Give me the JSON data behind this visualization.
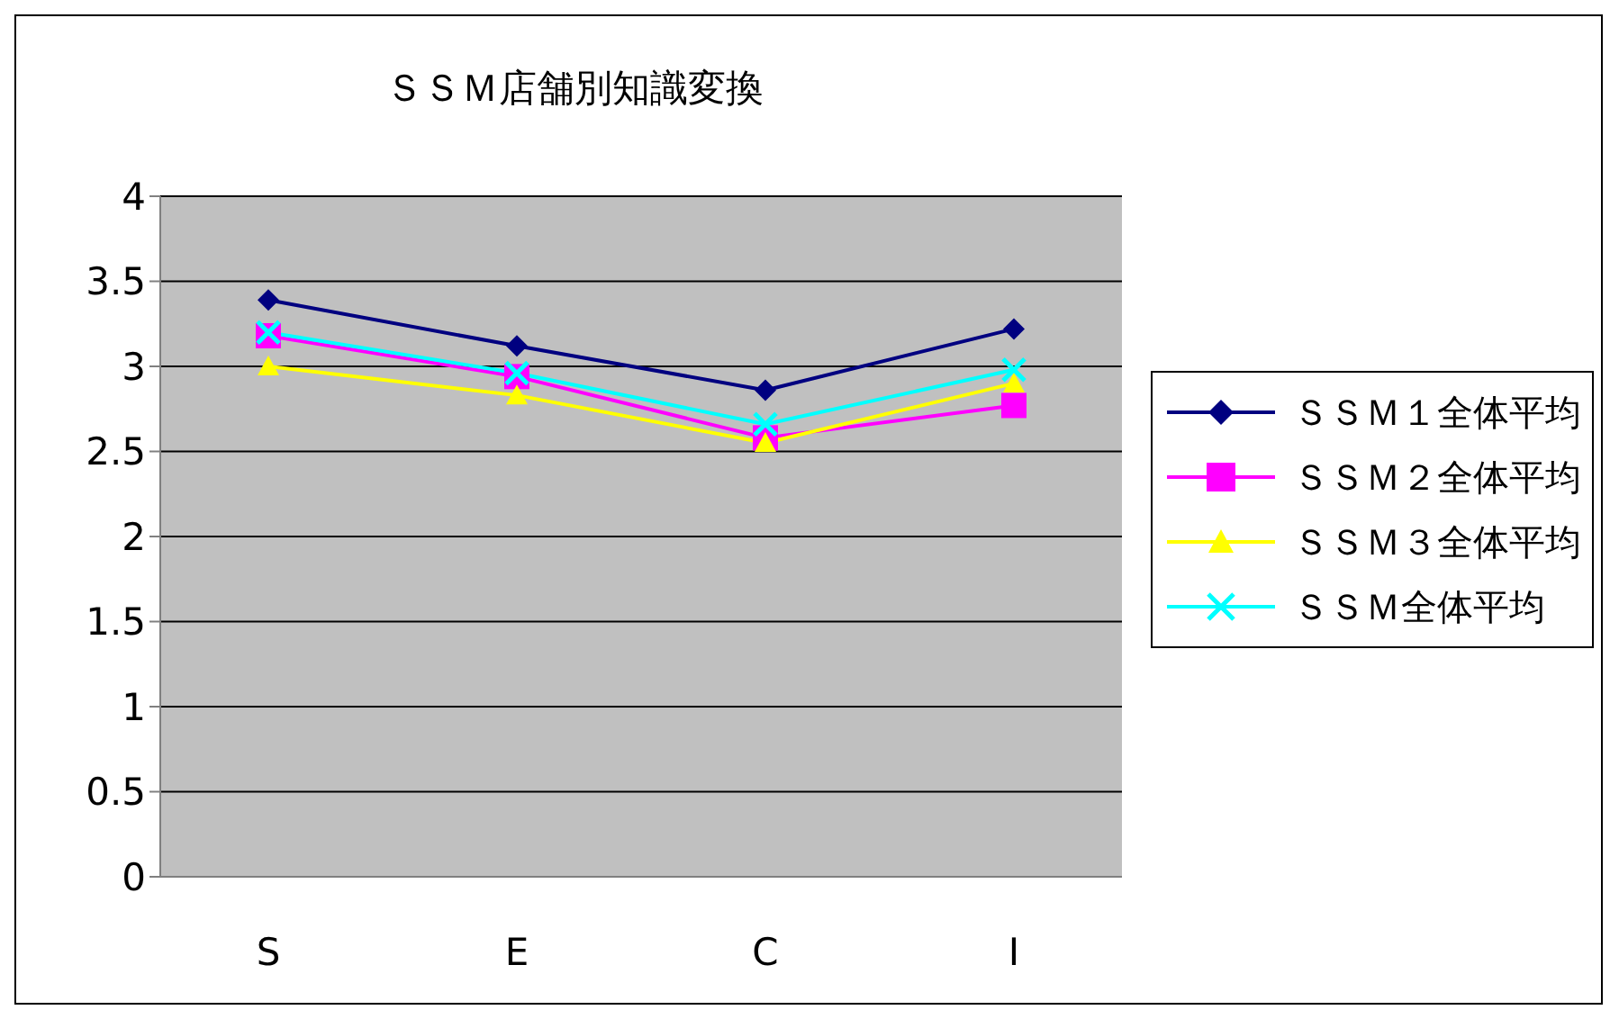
{
  "chart_data": {
    "type": "line",
    "title": "ＳＳＭ店舗別知識変換",
    "categories": [
      "S",
      "E",
      "C",
      "I"
    ],
    "series": [
      {
        "name": "ＳＳＭ１全体平均",
        "color": "#000080",
        "marker": "diamond",
        "values": [
          3.39,
          3.12,
          2.86,
          3.22
        ]
      },
      {
        "name": "ＳＳＭ２全体平均",
        "color": "#ff00ff",
        "marker": "square",
        "values": [
          3.18,
          2.94,
          2.58,
          2.77
        ]
      },
      {
        "name": "ＳＳＭ３全体平均",
        "color": "#ffff00",
        "marker": "triangle",
        "values": [
          3.0,
          2.83,
          2.55,
          2.9
        ]
      },
      {
        "name": "ＳＳＭ全体平均",
        "color": "#00ffff",
        "marker": "cross",
        "values": [
          3.2,
          2.96,
          2.66,
          2.98
        ]
      }
    ],
    "ylim": [
      0,
      4
    ],
    "yticks": [
      0,
      0.5,
      1,
      1.5,
      2,
      2.5,
      3,
      3.5,
      4
    ],
    "grid": "y",
    "legend": "right"
  }
}
